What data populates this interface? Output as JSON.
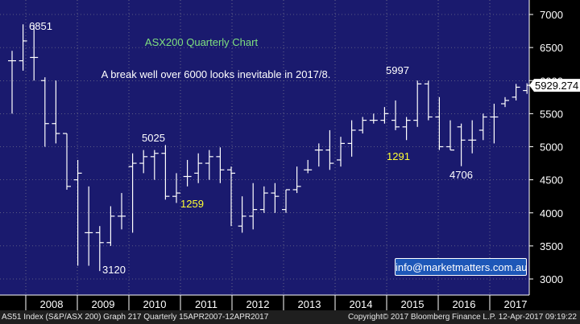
{
  "chart_data": {
    "type": "ohlc",
    "title": "ASX200 Quarterly Chart",
    "subtitle": "A break well over 6000 looks inevitable in 2017/8.",
    "ylim": [
      2800,
      7200
    ],
    "y_ticks": [
      3000,
      3500,
      4000,
      4500,
      5000,
      5500,
      6000,
      6500,
      7000
    ],
    "x_labels": [
      "2008",
      "2009",
      "2010",
      "2011",
      "2012",
      "2013",
      "2014",
      "2015",
      "2016",
      "2017"
    ],
    "last_price": "5929.274",
    "bars": [
      {
        "o": 6300,
        "h": 6450,
        "l": 5500,
        "c": 6300
      },
      {
        "o": 6300,
        "h": 6851,
        "l": 6150,
        "c": 6600
      },
      {
        "o": 6350,
        "h": 6850,
        "l": 6000,
        "c": 6350
      },
      {
        "o": 6000,
        "h": 6050,
        "l": 5000,
        "c": 5350
      },
      {
        "o": 5350,
        "h": 6000,
        "l": 5050,
        "c": 5200
      },
      {
        "o": 5200,
        "h": 5200,
        "l": 4350,
        "c": 4400
      },
      {
        "o": 4500,
        "h": 4800,
        "l": 3200,
        "c": 4600
      },
      {
        "o": 3700,
        "h": 4400,
        "l": 3200,
        "c": 3700
      },
      {
        "o": 3700,
        "h": 3800,
        "l": 3120,
        "c": 3550
      },
      {
        "o": 3550,
        "h": 4100,
        "l": 3500,
        "c": 3950
      },
      {
        "o": 3950,
        "h": 4300,
        "l": 3750,
        "c": 3950
      },
      {
        "o": 4700,
        "h": 4900,
        "l": 3700,
        "c": 4750
      },
      {
        "o": 4750,
        "h": 4950,
        "l": 4600,
        "c": 4850
      },
      {
        "o": 4850,
        "h": 4950,
        "l": 4500,
        "c": 4900
      },
      {
        "o": 4900,
        "h": 5025,
        "l": 4200,
        "c": 4250
      },
      {
        "o": 4250,
        "h": 4600,
        "l": 4150,
        "c": 4300
      },
      {
        "o": 4550,
        "h": 4800,
        "l": 4400,
        "c": 4550
      },
      {
        "o": 4600,
        "h": 4900,
        "l": 4450,
        "c": 4750
      },
      {
        "o": 4750,
        "h": 4950,
        "l": 4500,
        "c": 4850
      },
      {
        "o": 4850,
        "h": 4990,
        "l": 4450,
        "c": 4650
      },
      {
        "o": 4650,
        "h": 4700,
        "l": 3800,
        "c": 4600
      },
      {
        "o": 3800,
        "h": 4250,
        "l": 3700,
        "c": 3950
      },
      {
        "o": 3950,
        "h": 4450,
        "l": 3750,
        "c": 4050
      },
      {
        "o": 4050,
        "h": 4400,
        "l": 4000,
        "c": 4300
      },
      {
        "o": 4300,
        "h": 4450,
        "l": 4000,
        "c": 4250
      },
      {
        "o": 4050,
        "h": 4350,
        "l": 4000,
        "c": 4350
      },
      {
        "o": 4350,
        "h": 4700,
        "l": 4300,
        "c": 4400
      },
      {
        "o": 4650,
        "h": 4800,
        "l": 4600,
        "c": 4650
      },
      {
        "o": 4950,
        "h": 5050,
        "l": 4700,
        "c": 4950
      },
      {
        "o": 4950,
        "h": 5250,
        "l": 4650,
        "c": 4750
      },
      {
        "o": 4800,
        "h": 5150,
        "l": 4700,
        "c": 5050
      },
      {
        "o": 5050,
        "h": 5400,
        "l": 4850,
        "c": 5250
      },
      {
        "o": 5250,
        "h": 5450,
        "l": 5200,
        "c": 5400
      },
      {
        "o": 5400,
        "h": 5500,
        "l": 5350,
        "c": 5400
      },
      {
        "o": 5400,
        "h": 5600,
        "l": 5350,
        "c": 5500
      },
      {
        "o": 5400,
        "h": 5700,
        "l": 5250,
        "c": 5300
      },
      {
        "o": 5300,
        "h": 5450,
        "l": 5100,
        "c": 5400
      },
      {
        "o": 5400,
        "h": 6000,
        "l": 5300,
        "c": 5950
      },
      {
        "o": 5950,
        "h": 5997,
        "l": 5400,
        "c": 5450
      },
      {
        "o": 5450,
        "h": 5750,
        "l": 4950,
        "c": 5000
      },
      {
        "o": 5000,
        "h": 5400,
        "l": 4950,
        "c": 4950
      },
      {
        "o": 5300,
        "h": 5350,
        "l": 4706,
        "c": 5100
      },
      {
        "o": 5100,
        "h": 5400,
        "l": 4900,
        "c": 5100
      },
      {
        "o": 5250,
        "h": 5500,
        "l": 5100,
        "c": 5450
      },
      {
        "o": 5450,
        "h": 5650,
        "l": 5050,
        "c": 5450
      },
      {
        "o": 5650,
        "h": 5750,
        "l": 5600,
        "c": 5700
      },
      {
        "o": 5750,
        "h": 5950,
        "l": 5700,
        "c": 5900
      },
      {
        "o": 5850,
        "h": 5960,
        "l": 5800,
        "c": 5929
      }
    ],
    "annotations": [
      {
        "text": "6851",
        "x": 6851
      },
      {
        "text": "3120",
        "x": 3120
      },
      {
        "text": "5025",
        "x": 5025
      },
      {
        "text": "1259",
        "x": 4000
      },
      {
        "text": "5997",
        "x": 5997
      },
      {
        "text": "1291",
        "x": 4870
      },
      {
        "text": "4706",
        "x": 4706
      }
    ]
  },
  "email": "info@marketmatters.com.au",
  "footer": {
    "left": "AS51 Index (S&P/ASX 200) Graph 217  Quarterly 15APR2007-12APR2017",
    "right": "Copyright© 2017 Bloomberg Finance L.P.   12-Apr-2017 09:19:22"
  },
  "colors": {
    "plot_bg": "#1a1a6e",
    "axis_bg": "#000000",
    "bar": "#ffffff",
    "title": "#7fe07f",
    "yellow_label": "#ffff33",
    "grid": "#9a9a9a"
  }
}
